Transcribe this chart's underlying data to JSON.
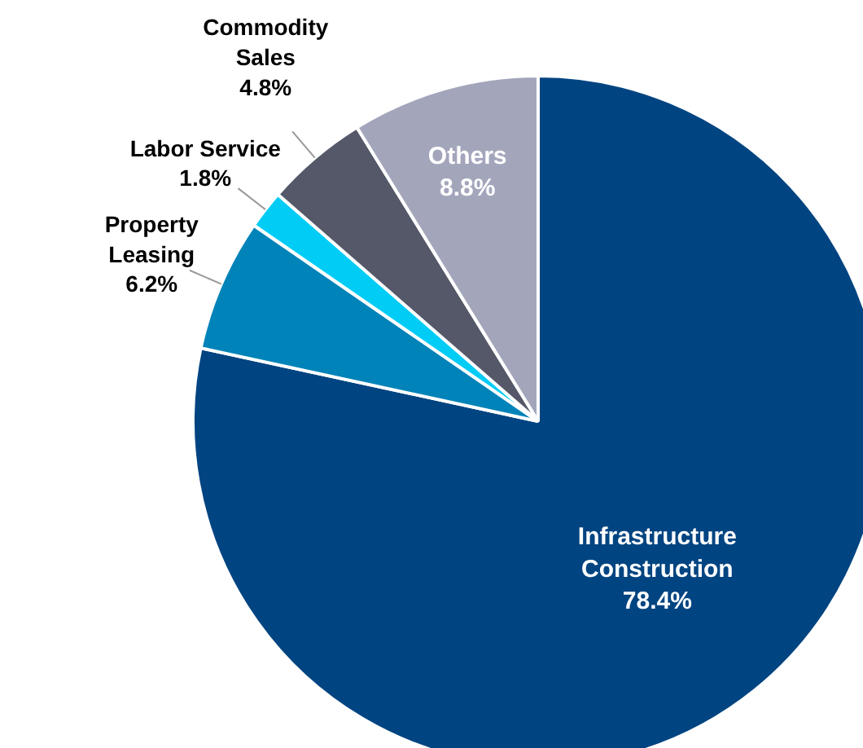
{
  "chart_data": {
    "type": "pie",
    "categories": [
      "Infrastructure\nConstruction",
      "Property\nLeasing",
      "Labor Service",
      "Commodity\nSales",
      "Others"
    ],
    "values": [
      78.4,
      6.2,
      1.8,
      4.8,
      8.8
    ],
    "colors": [
      "#004481",
      "#0083b8",
      "#00ccf5",
      "#545868",
      "#a3a6bb"
    ],
    "value_labels": [
      "78.4%",
      "6.2%",
      "1.8%",
      "4.8%",
      "8.8%"
    ]
  }
}
